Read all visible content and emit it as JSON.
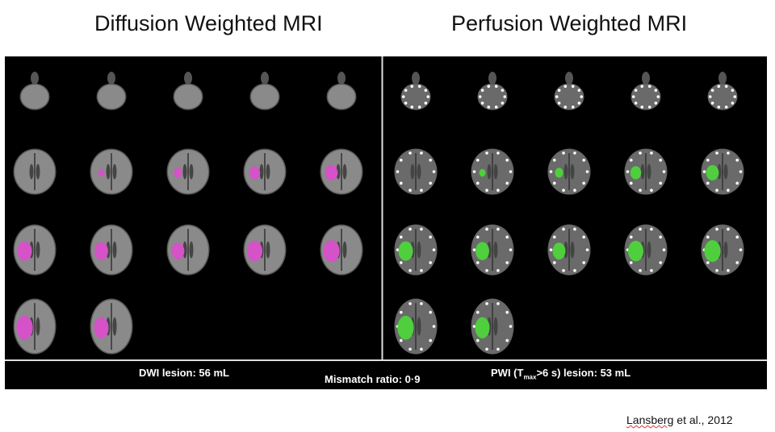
{
  "header": {
    "left_title": "Diffusion Weighted MRI",
    "right_title": "Perfusion Weighted MRI"
  },
  "captions": {
    "dwi": "DWI lesion: 56 mL",
    "mismatch": "Mismatch ratio: 0·9",
    "pwi": {
      "prefix": "PWI (T",
      "subscript": "max",
      "suffix": ">6 s) lesion: 53 mL"
    }
  },
  "citation": {
    "author": "Lansberg",
    "rest": " et al., 2012"
  }
}
